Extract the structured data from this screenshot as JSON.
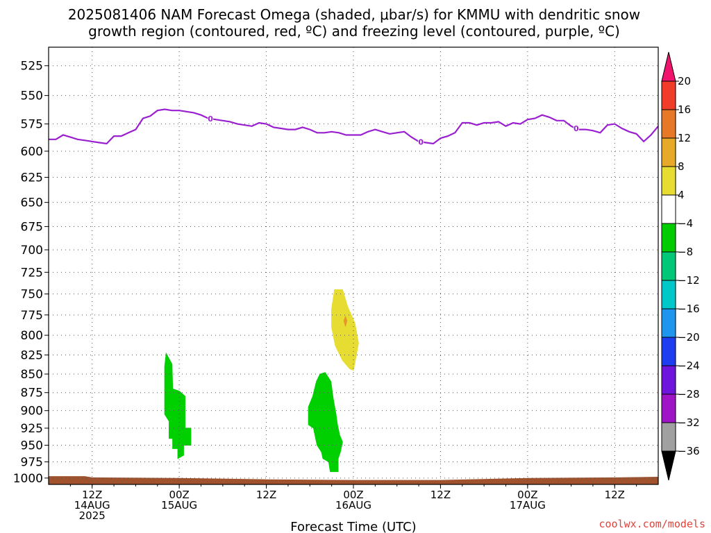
{
  "title": {
    "line1": "2025081406 NAM Forecast Omega (shaded, μbar/s) for KMMU with dendritic snow",
    "line2": "growth region (contoured, red, ºC) and freezing level (contoured, purple, ºC)"
  },
  "credit": "coolwx.com/models",
  "colors": {
    "freezing_line": "#9a1fd0",
    "ground": "#a0522d",
    "green": "#00d000",
    "yellow": "#e6dc32",
    "orange": "#e69628"
  },
  "chart_data": {
    "type": "heatmap",
    "xlabel": "Forecast Time (UTC)",
    "ylabel": "",
    "x_unit": "forecast hour (from 2025081406)",
    "xlim": [
      0,
      84
    ],
    "ylim": [
      1010,
      510
    ],
    "y_scale": "log-pressure",
    "grid": true,
    "yticks": [
      525,
      550,
      575,
      600,
      625,
      650,
      675,
      700,
      725,
      750,
      775,
      800,
      825,
      850,
      875,
      900,
      925,
      950,
      975,
      1000
    ],
    "xticks": [
      {
        "hour": 6,
        "lines": [
          "12Z",
          "14AUG",
          "2025"
        ]
      },
      {
        "hour": 18,
        "lines": [
          "00Z",
          "15AUG"
        ]
      },
      {
        "hour": 30,
        "lines": [
          "12Z"
        ]
      },
      {
        "hour": 42,
        "lines": [
          "00Z",
          "16AUG"
        ]
      },
      {
        "hour": 54,
        "lines": [
          "12Z"
        ]
      },
      {
        "hour": 66,
        "lines": [
          "00Z",
          "17AUG"
        ]
      },
      {
        "hour": 78,
        "lines": [
          "12Z"
        ]
      }
    ],
    "freezing_level": {
      "label": "0",
      "label_positions": [
        22.3,
        51.3,
        72.7
      ],
      "points": [
        [
          0,
          589
        ],
        [
          1,
          589
        ],
        [
          2,
          585
        ],
        [
          3,
          587
        ],
        [
          4,
          589
        ],
        [
          5,
          590
        ],
        [
          6,
          591
        ],
        [
          7,
          592
        ],
        [
          8,
          593
        ],
        [
          9,
          586
        ],
        [
          10,
          586
        ],
        [
          11,
          583
        ],
        [
          12,
          580
        ],
        [
          13,
          570
        ],
        [
          14,
          568
        ],
        [
          15,
          563
        ],
        [
          16,
          562
        ],
        [
          17,
          563
        ],
        [
          18,
          563
        ],
        [
          19,
          564
        ],
        [
          20,
          565
        ],
        [
          21,
          567
        ],
        [
          22,
          570
        ],
        [
          23,
          571
        ],
        [
          24,
          572
        ],
        [
          25,
          573
        ],
        [
          26,
          575
        ],
        [
          27,
          576
        ],
        [
          28,
          577
        ],
        [
          29,
          574
        ],
        [
          30,
          575
        ],
        [
          31,
          578
        ],
        [
          32,
          579
        ],
        [
          33,
          580
        ],
        [
          34,
          580
        ],
        [
          35,
          578
        ],
        [
          36,
          580
        ],
        [
          37,
          583
        ],
        [
          38,
          583
        ],
        [
          39,
          582
        ],
        [
          40,
          583
        ],
        [
          41,
          585
        ],
        [
          42,
          585
        ],
        [
          43,
          585
        ],
        [
          44,
          582
        ],
        [
          45,
          580
        ],
        [
          46,
          582
        ],
        [
          47,
          584
        ],
        [
          48,
          583
        ],
        [
          49,
          582
        ],
        [
          50,
          587
        ],
        [
          51,
          591
        ],
        [
          52,
          592
        ],
        [
          53,
          593
        ],
        [
          54,
          588
        ],
        [
          55,
          586
        ],
        [
          56,
          583
        ],
        [
          57,
          574
        ],
        [
          58,
          574
        ],
        [
          59,
          576
        ],
        [
          60,
          574
        ],
        [
          61,
          574
        ],
        [
          62,
          573
        ],
        [
          63,
          577
        ],
        [
          64,
          574
        ],
        [
          65,
          575
        ],
        [
          66,
          571
        ],
        [
          67,
          570
        ],
        [
          68,
          567
        ],
        [
          69,
          569
        ],
        [
          70,
          572
        ],
        [
          71,
          572
        ],
        [
          72,
          577
        ],
        [
          73,
          580
        ],
        [
          74,
          580
        ],
        [
          75,
          581
        ],
        [
          76,
          583
        ],
        [
          77,
          576
        ],
        [
          78,
          575
        ],
        [
          79,
          579
        ],
        [
          80,
          582
        ],
        [
          81,
          584
        ],
        [
          82,
          591
        ],
        [
          83,
          585
        ],
        [
          84,
          577
        ]
      ]
    },
    "omega_regions": [
      {
        "level_range": [
          4,
          8
        ],
        "color": "#e6dc32",
        "polygon": [
          [
            39.4,
            745
          ],
          [
            40.5,
            745
          ],
          [
            41.2,
            765
          ],
          [
            42.2,
            785
          ],
          [
            42.7,
            810
          ],
          [
            42.2,
            835
          ],
          [
            42.0,
            845
          ],
          [
            41.5,
            843
          ],
          [
            40.5,
            832
          ],
          [
            39.5,
            813
          ],
          [
            39.0,
            790
          ],
          [
            39.0,
            768
          ]
        ]
      },
      {
        "level_range": [
          8,
          12
        ],
        "color": "#e69628",
        "polygon": [
          [
            40.9,
            777
          ],
          [
            41.1,
            782
          ],
          [
            40.9,
            789
          ],
          [
            40.7,
            782
          ]
        ]
      },
      {
        "level_range": [
          -8,
          -4
        ],
        "color": "#00d000",
        "polygon": [
          [
            16.2,
            823
          ],
          [
            17.0,
            837
          ],
          [
            17.1,
            870
          ],
          [
            18.0,
            873
          ],
          [
            18.8,
            880
          ],
          [
            18.8,
            925
          ],
          [
            19.6,
            925
          ],
          [
            19.6,
            950
          ],
          [
            18.6,
            950
          ],
          [
            18.6,
            965
          ],
          [
            17.8,
            970
          ],
          [
            17.8,
            955
          ],
          [
            17.1,
            955
          ],
          [
            17.1,
            940
          ],
          [
            16.6,
            940
          ],
          [
            16.6,
            915
          ],
          [
            16.0,
            905
          ],
          [
            16.0,
            840
          ]
        ]
      },
      {
        "level_range": [
          -8,
          -4
        ],
        "color": "#00d000",
        "polygon": [
          [
            38.1,
            848
          ],
          [
            38.9,
            860
          ],
          [
            39.2,
            882
          ],
          [
            39.6,
            905
          ],
          [
            39.8,
            920
          ],
          [
            40.1,
            935
          ],
          [
            40.5,
            945
          ],
          [
            40.2,
            960
          ],
          [
            39.9,
            970
          ],
          [
            39.9,
            990
          ],
          [
            38.8,
            990
          ],
          [
            38.6,
            975
          ],
          [
            37.8,
            970
          ],
          [
            37.6,
            960
          ],
          [
            37.0,
            950
          ],
          [
            36.8,
            940
          ],
          [
            36.5,
            925
          ],
          [
            35.8,
            920
          ],
          [
            35.8,
            895
          ],
          [
            36.4,
            880
          ],
          [
            36.9,
            860
          ],
          [
            37.4,
            850
          ]
        ]
      }
    ],
    "ground_surface": [
      [
        0,
        997
      ],
      [
        5,
        997
      ],
      [
        6,
        999
      ],
      [
        18,
        1000
      ],
      [
        30,
        1002
      ],
      [
        42,
        1003
      ],
      [
        54,
        1003
      ],
      [
        66,
        1000
      ],
      [
        78,
        999
      ],
      [
        84,
        998
      ]
    ],
    "colorbar": {
      "labels": [
        "20",
        "16",
        "12",
        "8",
        "4",
        "−4",
        "−8",
        "−12",
        "−16",
        "−20",
        "−24",
        "−28",
        "−32",
        "−36"
      ],
      "colors": [
        "#f0146e",
        "#f03c28",
        "#e67828",
        "#e6aa28",
        "#e6dc32",
        "#ffffff",
        "#00cc00",
        "#00c878",
        "#00c8c8",
        "#1e96f0",
        "#1e3cf0",
        "#6e14dc",
        "#a014c8",
        "#a0a0a0",
        "#000000"
      ]
    }
  }
}
